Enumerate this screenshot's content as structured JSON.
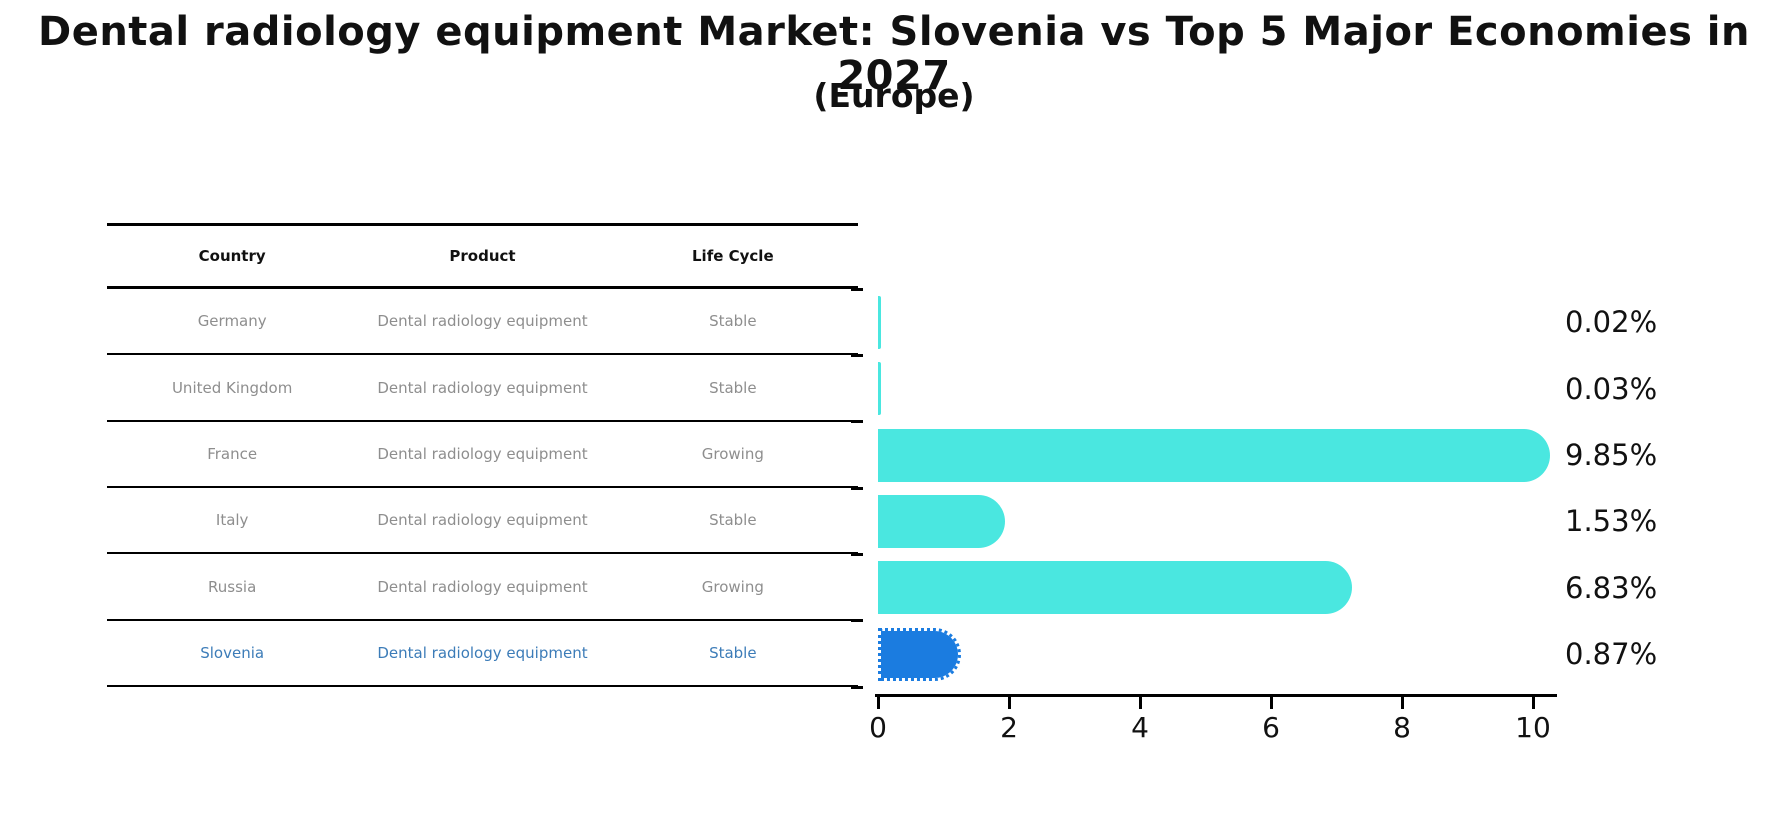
{
  "title": "Dental radiology equipment Market: Slovenia vs Top 5 Major Economies in 2027",
  "subtitle": "(Europe)",
  "table": {
    "headers": [
      "Country",
      "Product",
      "Life Cycle"
    ],
    "rows": [
      {
        "country": "Germany",
        "product": "Dental radiology equipment",
        "life_cycle": "Stable",
        "highlight": false
      },
      {
        "country": "United Kingdom",
        "product": "Dental radiology equipment",
        "life_cycle": "Stable",
        "highlight": false
      },
      {
        "country": "France",
        "product": "Dental radiology equipment",
        "life_cycle": "Growing",
        "highlight": false
      },
      {
        "country": "Italy",
        "product": "Dental radiology equipment",
        "life_cycle": "Stable",
        "highlight": false
      },
      {
        "country": "Russia",
        "product": "Dental radiology equipment",
        "life_cycle": "Growing",
        "highlight": false
      },
      {
        "country": "Slovenia",
        "product": "Dental radiology equipment",
        "life_cycle": "Stable",
        "highlight": true
      }
    ]
  },
  "chart_data": {
    "type": "bar",
    "orientation": "horizontal",
    "title": "Dental radiology equipment Market: Slovenia vs Top 5 Major Economies in 2027",
    "subtitle": "(Europe)",
    "categories": [
      "Germany",
      "United Kingdom",
      "France",
      "Italy",
      "Russia",
      "Slovenia"
    ],
    "values": [
      0.02,
      0.03,
      9.85,
      1.53,
      6.83,
      0.87
    ],
    "value_labels": [
      "0.02%",
      "0.03%",
      "9.85%",
      "1.53%",
      "6.83%",
      "0.87%"
    ],
    "x_ticks": [
      "0",
      "2",
      "4",
      "6",
      "8",
      "10"
    ],
    "xlim": [
      0,
      10.35
    ],
    "grid": false,
    "legend": "none",
    "highlight_index": 5
  },
  "colors": {
    "bar": "#4ae7e0",
    "highlight_bar": "#1b7ce0",
    "highlight_text": "#3c7cb8",
    "table_text": "#8e8e8e",
    "header_text": "#111111",
    "axis": "#000000",
    "label_text": "#111111"
  }
}
